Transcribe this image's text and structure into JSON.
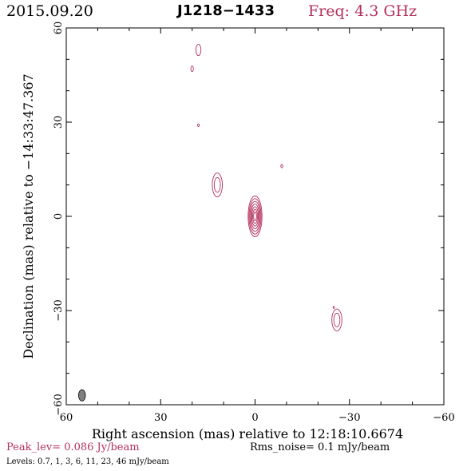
{
  "header": {
    "date": "2015.09.20",
    "source": "J1218−1433",
    "freq": "Freq: 4.3 GHz"
  },
  "footer": {
    "peak": "Peak_lev=  0.086 Jy/beam",
    "rms": "Rms_noise=   0.1 mJy/beam",
    "levels": "Levels: 0.7,    1,    3,    6,   11,   23,   46 mJy/beam"
  },
  "colors": {
    "contour": "#b5305a",
    "beam": "#808080"
  },
  "chart_data": {
    "type": "contour",
    "xlabel": "Right ascension (mas) relative to 12:18:10.6674",
    "ylabel": "Declination (mas) relative to −14:33:47.367",
    "xlim": [
      60,
      -60
    ],
    "ylim": [
      -60,
      60
    ],
    "x_ticks": [
      60,
      30,
      0,
      -30,
      -60
    ],
    "y_ticks": [
      60,
      30,
      0,
      -30,
      -60
    ],
    "x_tick_labels": [
      "60",
      "30",
      "0",
      "−30",
      "−60"
    ],
    "y_tick_labels": [
      "60",
      "30",
      "0",
      "−30",
      "−60"
    ],
    "contour_levels_mJy": [
      0.7,
      1,
      3,
      6,
      11,
      23,
      46
    ],
    "peak_Jy_per_beam": 0.086,
    "rms_noise_mJy_per_beam": 0.1,
    "beam": {
      "x": 55,
      "y": -57,
      "major": 3.6,
      "minor": 2.2,
      "pa_deg": 0
    },
    "components": [
      {
        "x": 0,
        "y": 0,
        "dx": 2.2,
        "dy": 6.5,
        "levels": 7
      },
      {
        "x": 12,
        "y": 10,
        "dx": 1.6,
        "dy": 3.8,
        "levels": 2
      },
      {
        "x": -26,
        "y": -33,
        "dx": 1.6,
        "dy": 3.5,
        "levels": 2
      },
      {
        "x": 18,
        "y": 53,
        "dx": 0.8,
        "dy": 1.8,
        "levels": 1
      },
      {
        "x": 20,
        "y": 47,
        "dx": 0.4,
        "dy": 0.9,
        "levels": 1
      },
      {
        "x": 18,
        "y": 29,
        "dx": 0.25,
        "dy": 0.4,
        "levels": 1
      },
      {
        "x": -8.5,
        "y": 16,
        "dx": 0.3,
        "dy": 0.5,
        "levels": 1
      },
      {
        "x": -25,
        "y": -29,
        "dx": 0.2,
        "dy": 0.3,
        "levels": 1
      }
    ]
  }
}
